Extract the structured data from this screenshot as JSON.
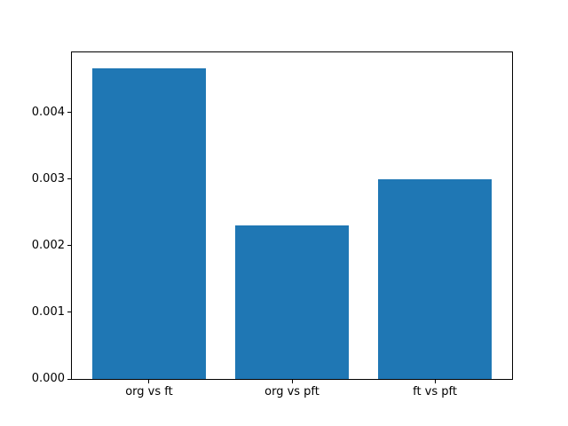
{
  "chart_data": {
    "type": "bar",
    "title": "",
    "xlabel": "",
    "ylabel": "",
    "categories": [
      "org vs ft",
      "org vs pft",
      "ft vs pft"
    ],
    "values": [
      0.00467,
      0.00231,
      0.003
    ],
    "ytick_values": [
      0.0,
      0.001,
      0.002,
      0.003,
      0.004
    ],
    "ytick_labels": [
      "0.000",
      "0.001",
      "0.002",
      "0.003",
      "0.004"
    ],
    "ylim": [
      0,
      0.0049035
    ],
    "xlim": [
      -0.54,
      2.54
    ],
    "bar_width": 0.8,
    "bar_color": "#1f77b4",
    "grid": false,
    "legend": "none",
    "background_color": "#ffffff",
    "axis_color": "#000000"
  }
}
